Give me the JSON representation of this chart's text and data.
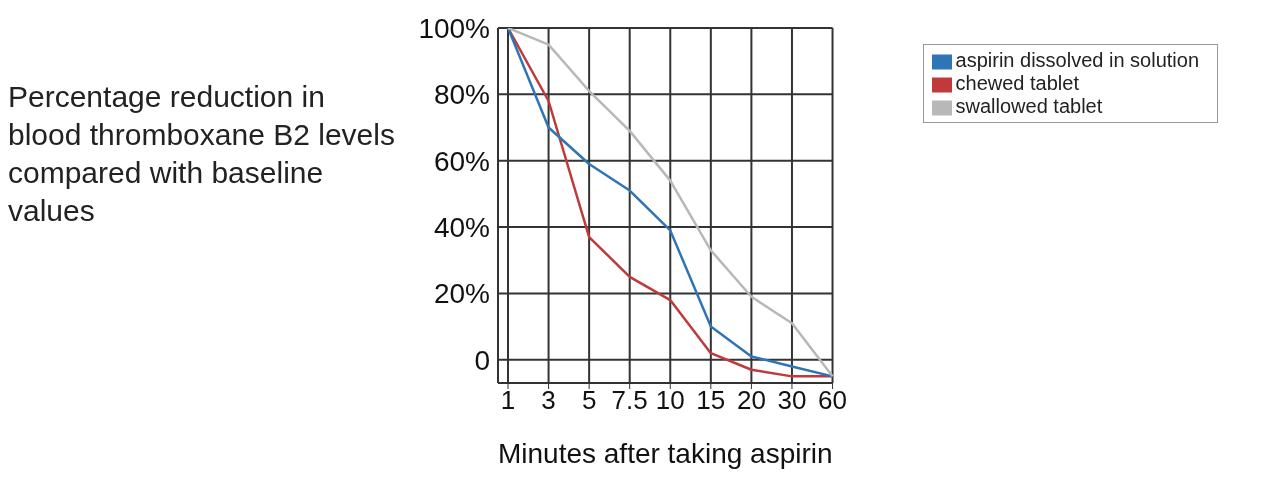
{
  "chart_data": {
    "type": "line",
    "ylabel": "Percentage reduction in blood thromboxane B2 levels compared with baseline values",
    "xlabel": "Minutes after taking aspirin",
    "categories": [
      "1",
      "3",
      "5",
      "7.5",
      "10",
      "15",
      "20",
      "30",
      "60"
    ],
    "series": [
      {
        "name": "chewed tablet",
        "color": "#c0393b",
        "values": [
          100,
          78,
          37,
          25,
          18,
          2,
          -3,
          -5,
          -5
        ]
      },
      {
        "name": "aspirin dissolved in solution",
        "color": "#2e75b6",
        "values": [
          100,
          70,
          59,
          51,
          39,
          10,
          1,
          -2,
          -5
        ]
      },
      {
        "name": "swallowed tablet",
        "color": "#b8b8b8",
        "values": [
          100,
          95,
          81,
          69,
          54,
          33,
          19,
          11,
          -5
        ]
      }
    ],
    "ylim": [
      -7,
      100
    ],
    "yticks": [
      {
        "value": 0,
        "label": "0"
      },
      {
        "value": 20,
        "label": "20%"
      },
      {
        "value": 40,
        "label": "40%"
      },
      {
        "value": 60,
        "label": "60%"
      },
      {
        "value": 80,
        "label": "80%"
      },
      {
        "value": 100,
        "label": "100%"
      }
    ],
    "grid": true,
    "legend": "top right",
    "marker": "none",
    "line_style": "solid"
  }
}
